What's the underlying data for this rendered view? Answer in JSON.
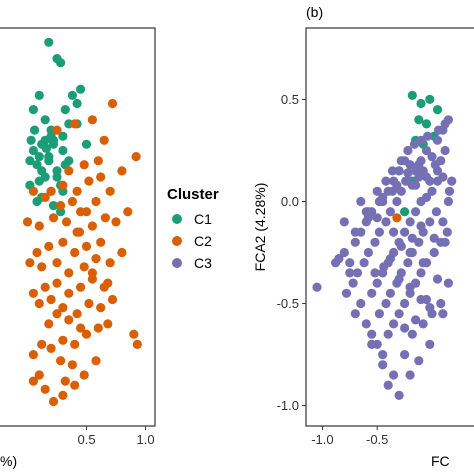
{
  "legend": {
    "title": "Cluster",
    "position": "center",
    "items": [
      {
        "label": "C1",
        "color": "#1b9e77"
      },
      {
        "label": "C2",
        "color": "#d95f02"
      },
      {
        "label": "C3",
        "color": "#7570b3"
      }
    ]
  },
  "chart_data": [
    {
      "type": "scatter",
      "panel_tag": "",
      "xlabel": "%)",
      "ylabel": "",
      "xlim": [
        -0.25,
        1.08
      ],
      "ylim": [
        -1.1,
        0.85
      ],
      "xticks": [
        0.5,
        1.0
      ],
      "xtick_labels": [
        "0.5",
        "1.0"
      ],
      "yticks": [],
      "grid": false,
      "series": [
        {
          "name": "C1",
          "color": "#1b9e77",
          "x": [
            0.18,
            0.25,
            0.28,
            0.1,
            0.05,
            0.15,
            0.2,
            0.32,
            0.38,
            0.42,
            0.45,
            0.35,
            0.3,
            0.22,
            0.12,
            0.05,
            0.02,
            0.08,
            0.18,
            0.25,
            0.32,
            0.15,
            0.1,
            0.28,
            0.35,
            0.2,
            0.12,
            0.08,
            0.22,
            0.3,
            0.03,
            0.15,
            0.42,
            0.5,
            0.25,
            0.02,
            0.18,
            0.12,
            0.22,
            0.28,
            0.3,
            0.06,
            0.2,
            0.1,
            0.16
          ],
          "y": [
            0.78,
            0.7,
            0.68,
            0.52,
            0.45,
            0.4,
            0.35,
            0.45,
            0.52,
            0.48,
            0.55,
            0.38,
            0.32,
            0.3,
            0.28,
            0.25,
            0.2,
            0.18,
            0.22,
            0.15,
            0.18,
            0.12,
            0.1,
            0.08,
            0.2,
            0.05,
            0.02,
            0.0,
            -0.02,
            0.25,
            0.3,
            0.3,
            0.38,
            0.28,
            0.12,
            0.08,
            0.2,
            0.15,
            0.28,
            -0.05,
            0.05,
            0.35,
            0.32,
            0.22,
            0.26
          ]
        },
        {
          "name": "C2",
          "color": "#d95f02",
          "x": [
            0.25,
            0.4,
            0.55,
            0.65,
            0.72,
            0.92,
            0.8,
            0.6,
            0.48,
            0.35,
            0.3,
            0.42,
            0.52,
            0.62,
            0.7,
            0.58,
            0.45,
            0.38,
            0.28,
            0.2,
            0.15,
            0.05,
            0.0,
            0.1,
            0.22,
            0.33,
            0.44,
            0.55,
            0.66,
            0.75,
            0.85,
            0.62,
            0.5,
            0.4,
            0.3,
            0.18,
            0.08,
            0.02,
            0.12,
            0.25,
            0.35,
            0.48,
            0.58,
            0.7,
            0.8,
            0.68,
            0.55,
            0.45,
            0.35,
            0.25,
            0.15,
            0.05,
            0.1,
            0.2,
            0.3,
            0.42,
            0.52,
            0.62,
            0.72,
            0.9,
            0.93,
            0.6,
            0.5,
            0.4,
            0.3,
            0.2,
            0.12,
            0.05,
            0.28,
            0.38,
            0.48,
            0.58,
            0.68,
            0.4,
            0.3,
            0.22,
            0.15,
            0.05,
            0.35,
            0.45,
            0.55,
            0.65,
            0.25,
            0.18,
            0.1,
            0.32,
            0.42,
            0.5
          ],
          "y": [
            0.35,
            0.38,
            0.4,
            0.3,
            0.48,
            0.22,
            0.15,
            0.2,
            0.18,
            0.15,
            0.08,
            0.05,
            0.1,
            0.12,
            0.05,
            0.0,
            -0.05,
            0.0,
            -0.02,
            0.05,
            0.02,
            0.05,
            -0.1,
            -0.12,
            -0.08,
            -0.1,
            -0.15,
            -0.12,
            -0.08,
            -0.1,
            -0.05,
            -0.2,
            -0.22,
            -0.25,
            -0.2,
            -0.22,
            -0.25,
            -0.3,
            -0.32,
            -0.3,
            -0.35,
            -0.32,
            -0.28,
            -0.3,
            -0.25,
            -0.4,
            -0.38,
            -0.42,
            -0.45,
            -0.4,
            -0.42,
            -0.45,
            -0.5,
            -0.48,
            -0.52,
            -0.55,
            -0.5,
            -0.52,
            -0.48,
            -0.65,
            -0.7,
            -0.62,
            -0.65,
            -0.7,
            -0.68,
            -0.72,
            -0.7,
            -0.75,
            -0.78,
            -0.8,
            -0.85,
            -0.78,
            -0.6,
            -0.9,
            -0.95,
            -0.98,
            -0.92,
            -0.88,
            -0.58,
            -0.62,
            -0.35,
            -0.42,
            -0.55,
            -0.6,
            -0.85,
            -0.88,
            -0.15,
            -0.05
          ]
        }
      ]
    },
    {
      "type": "scatter",
      "panel_tag": "(b)",
      "xlabel": "FC",
      "ylabel": "FCA2 (4.28%)",
      "xlim": [
        -1.15,
        0.42
      ],
      "ylim": [
        -1.1,
        0.85
      ],
      "xticks": [
        -1.0,
        -0.5
      ],
      "xtick_labels": [
        "-1.0",
        "-0.5"
      ],
      "yticks": [
        0.5,
        0.0,
        -0.5,
        -1.0
      ],
      "ytick_labels": [
        "0.5",
        "0.0",
        "-0.5",
        "-1.0"
      ],
      "grid": false,
      "series": [
        {
          "name": "C1",
          "color": "#1b9e77",
          "x": [
            -0.18,
            -0.1,
            -0.02,
            0.05,
            -0.12,
            -0.05,
            0.02,
            -0.15,
            -0.08,
            -0.3,
            -0.18,
            -0.25
          ],
          "y": [
            0.52,
            0.48,
            0.5,
            0.45,
            0.4,
            0.38,
            0.32,
            0.3,
            0.28,
            0.15,
            0.1,
            -0.05
          ]
        },
        {
          "name": "C2",
          "color": "#d95f02",
          "x": [
            -0.32,
            -0.05
          ],
          "y": [
            -0.08,
            -0.3
          ]
        },
        {
          "name": "C3",
          "color": "#7570b3",
          "x": [
            -1.05,
            -0.88,
            -0.85,
            -0.8,
            -0.75,
            -0.7,
            -0.65,
            -0.6,
            -0.55,
            -0.5,
            -0.45,
            -0.4,
            -0.35,
            -0.3,
            -0.25,
            -0.2,
            -0.15,
            -0.1,
            -0.05,
            0.0,
            0.05,
            0.1,
            0.15,
            0.18,
            -0.78,
            -0.72,
            -0.68,
            -0.62,
            -0.58,
            -0.52,
            -0.48,
            -0.42,
            -0.38,
            -0.32,
            -0.28,
            -0.22,
            -0.18,
            -0.12,
            -0.08,
            -0.02,
            0.03,
            0.08,
            0.12,
            0.16,
            -0.7,
            -0.65,
            -0.55,
            -0.5,
            -0.45,
            -0.4,
            -0.35,
            -0.3,
            -0.25,
            -0.2,
            -0.15,
            -0.1,
            -0.05,
            0.0,
            0.05,
            0.1,
            0.15,
            -0.6,
            -0.55,
            -0.48,
            -0.42,
            -0.38,
            -0.32,
            -0.28,
            -0.22,
            -0.18,
            -0.12,
            -0.08,
            -0.02,
            0.04,
            0.1,
            -0.5,
            -0.45,
            -0.4,
            -0.35,
            -0.3,
            -0.25,
            -0.2,
            -0.15,
            -0.1,
            -0.05,
            0.02,
            0.08,
            0.14,
            -0.65,
            -0.58,
            -0.5,
            -0.42,
            -0.36,
            -0.28,
            -0.22,
            -0.16,
            -0.1,
            -0.04,
            0.06,
            0.12,
            -0.8,
            -0.55,
            -0.45,
            -0.35,
            -0.25,
            -0.18,
            -0.08,
            0.0,
            -0.4,
            -0.3,
            -0.2,
            -0.12,
            -0.02,
            -0.52,
            -0.38,
            -0.28,
            -0.18,
            -0.1,
            -0.6,
            -0.48,
            -0.36,
            -0.24,
            -0.15,
            -0.05,
            0.05,
            -0.44,
            -0.3,
            -0.2,
            -0.1,
            -0.02,
            0.1,
            -0.7,
            -0.58,
            -0.45,
            -0.32,
            -0.22,
            -0.12,
            -0.25,
            -0.15,
            -0.05,
            0.05,
            -0.35,
            -0.2,
            -0.08,
            0.02,
            0.12,
            0.15,
            0.08,
            -0.75
          ],
          "y": [
            -0.42,
            -0.3,
            -0.28,
            -0.25,
            -0.3,
            -0.2,
            -0.15,
            -0.1,
            -0.05,
            -0.08,
            0.0,
            0.05,
            0.1,
            0.15,
            0.2,
            0.18,
            0.15,
            0.2,
            0.25,
            0.22,
            0.3,
            0.35,
            0.4,
            0.1,
            -0.45,
            -0.4,
            -0.35,
            -0.3,
            -0.25,
            -0.2,
            -0.15,
            -0.1,
            -0.05,
            0.0,
            0.05,
            0.1,
            0.08,
            0.12,
            0.15,
            0.1,
            0.18,
            0.2,
            0.25,
            0.05,
            -0.55,
            -0.5,
            -0.45,
            -0.4,
            -0.35,
            -0.3,
            -0.25,
            -0.2,
            -0.15,
            -0.1,
            -0.05,
            0.0,
            0.02,
            0.05,
            0.1,
            0.12,
            0.0,
            -0.6,
            -0.65,
            -0.55,
            -0.5,
            -0.45,
            -0.4,
            -0.35,
            -0.3,
            -0.25,
            -0.2,
            -0.15,
            -0.1,
            -0.05,
            -0.1,
            -0.7,
            -0.75,
            -0.65,
            -0.6,
            -0.55,
            -0.5,
            -0.45,
            -0.4,
            -0.35,
            -0.3,
            -0.25,
            -0.2,
            -0.15,
            0.0,
            -0.05,
            0.05,
            0.1,
            0.15,
            0.2,
            0.25,
            0.28,
            0.3,
            0.32,
            0.35,
            0.38,
            -0.1,
            -0.7,
            -0.8,
            -0.85,
            -0.75,
            -0.65,
            -0.6,
            -0.55,
            -0.9,
            -0.95,
            -0.85,
            -0.78,
            -0.7,
            -0.35,
            -0.28,
            -0.22,
            -0.18,
            -0.12,
            -0.05,
            0.0,
            0.05,
            0.1,
            0.08,
            0.12,
            0.15,
            -0.32,
            -0.38,
            -0.42,
            -0.48,
            -0.52,
            -0.55,
            -0.15,
            -0.08,
            0.02,
            0.08,
            0.14,
            0.18,
            -0.62,
            -0.58,
            -0.48,
            -0.38,
            -0.15,
            -0.25,
            -0.3,
            -0.18,
            -0.2,
            -0.4,
            -0.5,
            -0.35
          ]
        }
      ]
    }
  ]
}
